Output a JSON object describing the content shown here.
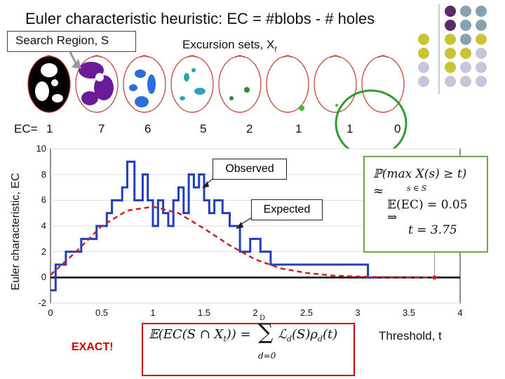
{
  "title": "Euler characteristic heuristic: EC = #blobs - # holes",
  "search_region_label": "Search Region, S",
  "excursion_label": "Excursion sets, X",
  "excursion_subscript": "t",
  "ec_prefix": "EC=",
  "ec_values": [
    "1",
    "7",
    "6",
    "5",
    "2",
    "1",
    "1",
    "0"
  ],
  "callouts": {
    "observed": "Observed",
    "expected": "Expected"
  },
  "info_box": {
    "line1_a": "ℙ(max X(s) ",
    "line1_ge": "≥",
    "line1_b": " t)",
    "line1_sub": "s ∈ S",
    "approx": "≈",
    "line2": "𝔼(EC) = 0.05",
    "implies": "⇒",
    "line3": "t = 3.75"
  },
  "formula": {
    "lhs": "𝔼(EC(S ∩ X",
    "lhs_sub": "t",
    "lhs_end": ")) =",
    "sum": "∑",
    "sum_top": "D",
    "sum_bottom": "d=0",
    "rhs": "ℒ",
    "rhs_sub": "d",
    "rhs_end": "(S)ρ",
    "rho_sub": "d",
    "rhs_tail": "(t)"
  },
  "exact_label": "EXACT!",
  "threshold_label": "Threshold, t",
  "colors": {
    "observed": "#1f3fbf",
    "expected": "#cc1f1f",
    "green_circle": "#2e9e2e",
    "brain_outline": "#c0392b",
    "purple": "#5b2a6e",
    "teal": "#86a3ad",
    "olive": "#c9c33a",
    "lavender": "#c9c4dc"
  },
  "chart_data": {
    "type": "line",
    "xlabel": "Threshold, t",
    "ylabel": "Euler characteristic, EC",
    "xlim": [
      0,
      4
    ],
    "ylim": [
      -2,
      10
    ],
    "xticks": [
      "0",
      "0.5",
      "1",
      "1.5",
      "2",
      "2.5",
      "3",
      "3.5",
      "4"
    ],
    "xtick_values": [
      0,
      0.5,
      1,
      1.5,
      2,
      2.5,
      3,
      3.5,
      4
    ],
    "yticks": [
      "-2",
      "0",
      "2",
      "4",
      "6",
      "8",
      "10"
    ],
    "ytick_values": [
      -2,
      0,
      2,
      4,
      6,
      8,
      10
    ],
    "series": [
      {
        "name": "Observed",
        "type": "step",
        "x": [
          0,
          0.05,
          0.15,
          0.3,
          0.45,
          0.55,
          0.6,
          0.7,
          0.75,
          0.82,
          0.9,
          0.95,
          1.0,
          1.05,
          1.1,
          1.15,
          1.2,
          1.25,
          1.3,
          1.35,
          1.4,
          1.45,
          1.5,
          1.55,
          1.6,
          1.68,
          1.75,
          1.85,
          1.95,
          2.05,
          2.15,
          2.3,
          2.6,
          3.1,
          3.15
        ],
        "y": [
          -1,
          1,
          2,
          3,
          4,
          5,
          6,
          7,
          9,
          6,
          8,
          6,
          4,
          6,
          5,
          4,
          6,
          7,
          5,
          8,
          7,
          8,
          6,
          5,
          6,
          5,
          4,
          2,
          3,
          2,
          1,
          1,
          1,
          0,
          0
        ]
      },
      {
        "name": "Expected",
        "type": "line",
        "x": [
          0,
          0.25,
          0.5,
          0.75,
          1.0,
          1.25,
          1.5,
          1.75,
          2.0,
          2.25,
          2.5,
          2.75,
          3.0,
          3.25,
          3.5,
          3.75
        ],
        "y": [
          0.2,
          2.0,
          4.0,
          5.2,
          5.5,
          5.0,
          3.8,
          2.5,
          1.4,
          0.7,
          0.35,
          0.15,
          0.07,
          0.03,
          0.02,
          0.01
        ]
      }
    ],
    "horizontal_line_y": 0,
    "marker_t": 3.75
  }
}
